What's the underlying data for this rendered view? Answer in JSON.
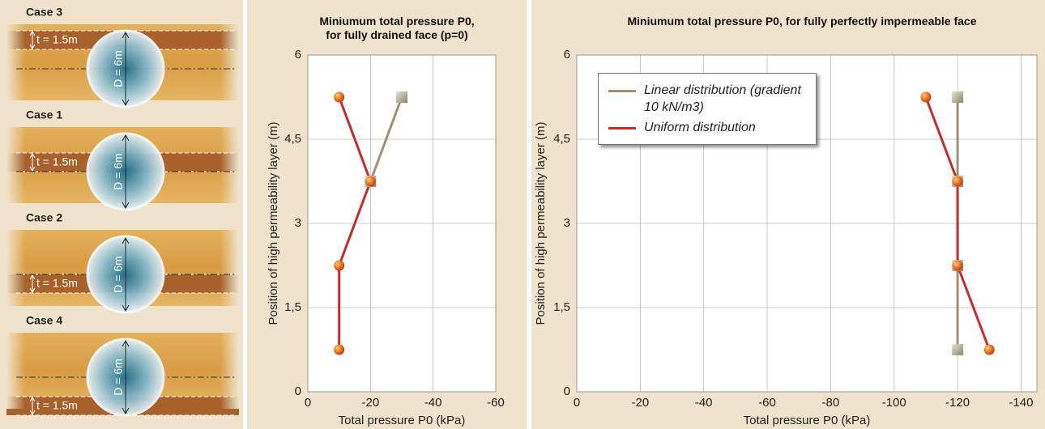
{
  "diagram": {
    "cases": [
      {
        "title": "Case 3",
        "thickness": "t = 1.5m",
        "diameter": "D = 6m"
      },
      {
        "title": "Case 1",
        "thickness": "t = 1.5m",
        "diameter": "D = 6m"
      },
      {
        "title": "Case 2",
        "thickness": "t = 1.5m",
        "diameter": "D = 6m"
      },
      {
        "title": "Case 4",
        "thickness": "t = 1.5m",
        "diameter": "D = 6m"
      }
    ]
  },
  "chart_data": [
    {
      "type": "line",
      "title": "Miniumum total pressure P0, for fully drained face (p=0)",
      "x_label": "Total pressure P0 (kPa)",
      "y_label": "Position of high permeability layer (m)",
      "xlim": [
        0,
        -60
      ],
      "xticks": [
        0,
        -20,
        -40,
        -60
      ],
      "ylim": [
        0,
        6
      ],
      "yticks": [
        0,
        {
          "value": 1.5,
          "label": "1,5"
        },
        3,
        {
          "value": 4.5,
          "label": "4,5"
        },
        6
      ],
      "grid": true,
      "series": [
        {
          "color": "#9c9272",
          "marker": "square",
          "x": [
            -30,
            -20
          ],
          "y": [
            5.25,
            3.75
          ]
        },
        {
          "color": "#d0282a",
          "marker": "circle",
          "x": [
            -10,
            -20,
            -10,
            -10
          ],
          "y": [
            5.25,
            3.75,
            2.25,
            0.75
          ]
        }
      ]
    },
    {
      "type": "line",
      "title": "Miniumum total pressure P0, for fully perfectly impermeable face",
      "x_label": "Total pressure P0 (kPa)",
      "y_label": "Position of high permeability layer (m)",
      "xlim": [
        0,
        -145
      ],
      "xticks": [
        0,
        -20,
        -40,
        -60,
        -80,
        -100,
        -120,
        -140
      ],
      "ylim": [
        0,
        6
      ],
      "yticks": [
        0,
        {
          "value": 1.5,
          "label": "1,5"
        },
        3,
        {
          "value": 4.5,
          "label": "4,5"
        },
        6
      ],
      "grid": true,
      "legend": "upper left",
      "series": [
        {
          "name": "Linear distribution (gradient 10 kN/m3)",
          "color": "#9c9272",
          "marker": "square",
          "x": [
            -120,
            -120,
            -120,
            -120
          ],
          "y": [
            5.25,
            3.75,
            2.25,
            0.75
          ]
        },
        {
          "name": "Uniform distribution",
          "color": "#d0282a",
          "marker": "circle",
          "x": [
            -110,
            -120,
            -120,
            -130
          ],
          "y": [
            5.25,
            3.75,
            2.25,
            0.75
          ]
        }
      ]
    }
  ]
}
